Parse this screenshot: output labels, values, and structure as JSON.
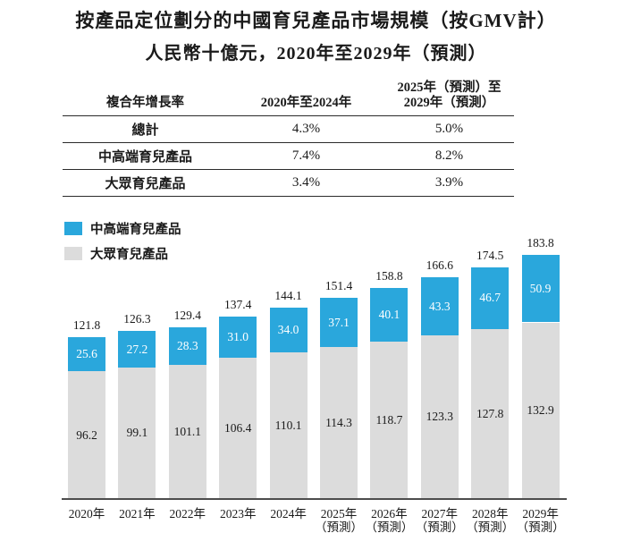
{
  "page": {
    "title_line1": "按產品定位劃分的中國育兒產品市場規模（按GMV計）",
    "title_line2": "人民幣十億元，2020年至2029年（預測）"
  },
  "table": {
    "header": {
      "col1": "複合年增長率",
      "col2": "2020年至2024年",
      "col3_line1": "2025年（預測）至",
      "col3_line2": "2029年（預測）"
    },
    "rows": [
      {
        "label": "總計",
        "v1": "4.3%",
        "v2": "5.0%"
      },
      {
        "label": "中高端育兒產品",
        "v1": "7.4%",
        "v2": "8.2%"
      },
      {
        "label": "大眾育兒產品",
        "v1": "3.4%",
        "v2": "3.9%"
      }
    ]
  },
  "legend": [
    {
      "label": "中高端育兒產品",
      "color": "#2AA7DC"
    },
    {
      "label": "大眾育兒產品",
      "color": "#DCDCDC"
    }
  ],
  "colors": {
    "premium": "#2AA7DC",
    "mass": "#DCDCDC",
    "axis": "#4d4d4d",
    "text": "#1a1a1a",
    "bar_value_on_blue": "#ffffff"
  },
  "chart_data": {
    "type": "bar",
    "stacked": true,
    "title": "按產品定位劃分的中國育兒產品市場規模（按GMV計）",
    "subtitle": "人民幣十億元，2020年至2029年（預測）",
    "unit_label": "人民幣十億元",
    "categories": [
      {
        "year": "2020年",
        "note": ""
      },
      {
        "year": "2021年",
        "note": ""
      },
      {
        "year": "2022年",
        "note": ""
      },
      {
        "year": "2023年",
        "note": ""
      },
      {
        "year": "2024年",
        "note": ""
      },
      {
        "year": "2025年",
        "note": "（預測）"
      },
      {
        "year": "2026年",
        "note": "（預測）"
      },
      {
        "year": "2027年",
        "note": "（預測）"
      },
      {
        "year": "2028年",
        "note": "（預測）"
      },
      {
        "year": "2029年",
        "note": "（預測）"
      }
    ],
    "series": [
      {
        "name": "中高端育兒產品",
        "color": "#2AA7DC",
        "values": [
          25.6,
          27.2,
          28.3,
          31.0,
          34.0,
          37.1,
          40.1,
          43.3,
          46.7,
          50.9
        ]
      },
      {
        "name": "大眾育兒產品",
        "color": "#DCDCDC",
        "values": [
          96.2,
          99.1,
          101.1,
          106.4,
          110.1,
          114.3,
          118.7,
          123.3,
          127.8,
          132.9
        ]
      }
    ],
    "totals": [
      121.8,
      126.3,
      129.4,
      137.4,
      144.1,
      151.4,
      158.8,
      166.6,
      174.5,
      183.8
    ],
    "ylim": [
      0,
      190
    ],
    "grid": false,
    "legend_position": "top-left"
  }
}
